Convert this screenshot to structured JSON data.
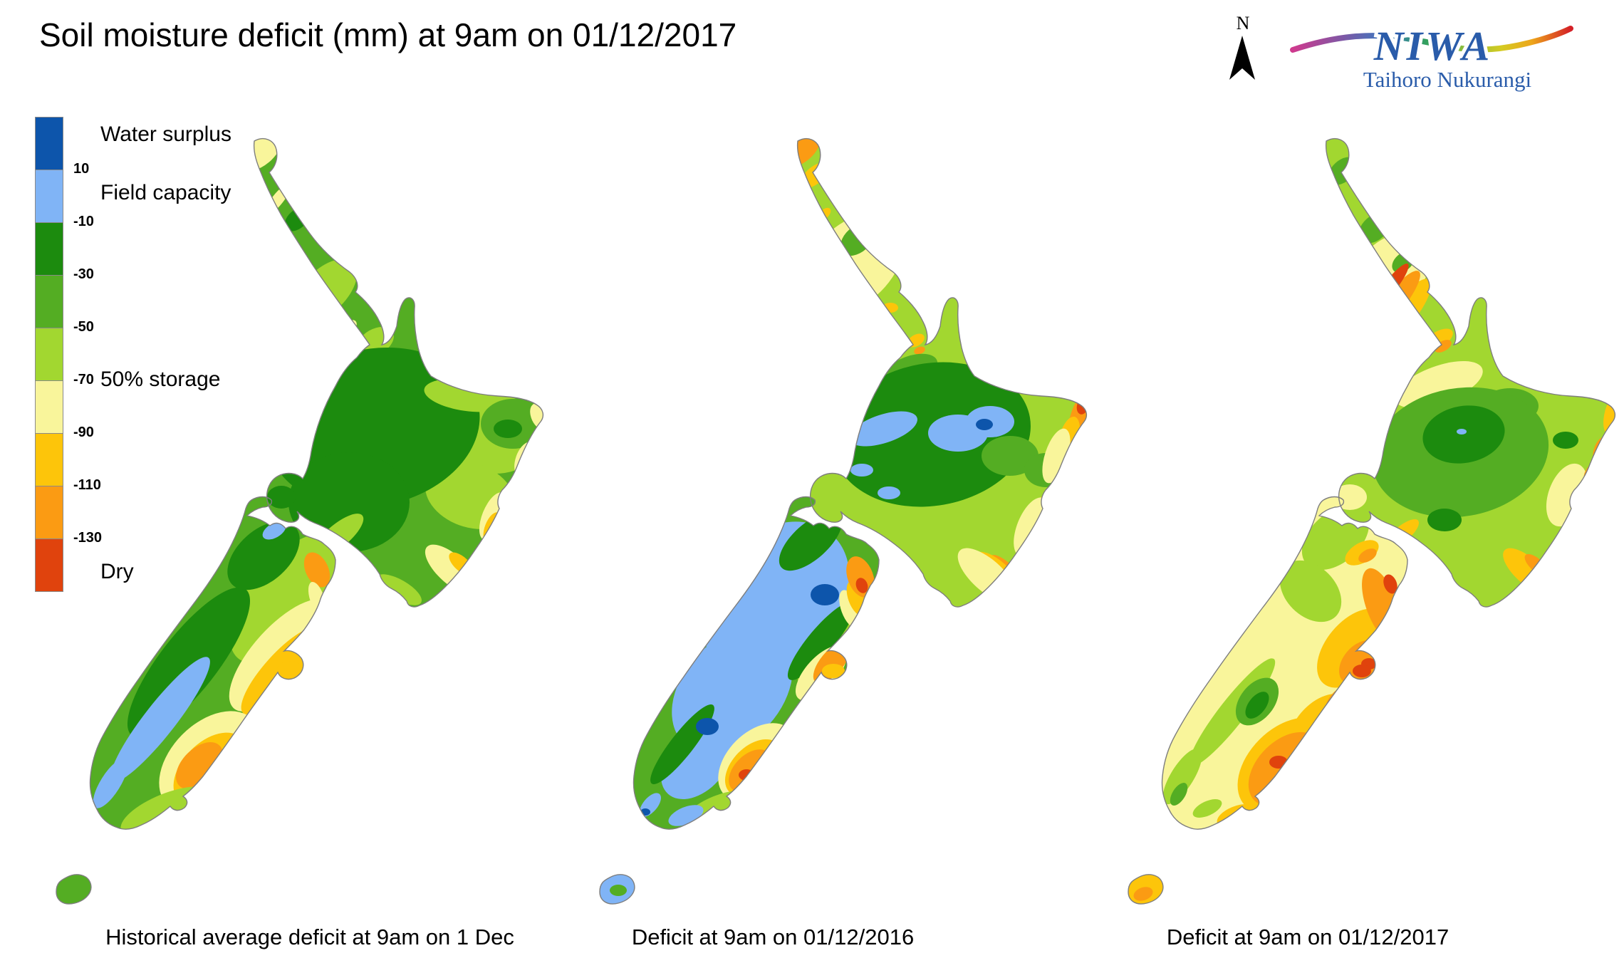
{
  "title": "Soil moisture deficit (mm) at  9am on 01/12/2017",
  "north_arrow": {
    "label": "N"
  },
  "logo": {
    "name": "NIWA",
    "tagline": "Taihoro Nukurangi",
    "color": "#2a5caa"
  },
  "coast_color": "#7e7e7e",
  "legend": {
    "colors": {
      "surplus": "#0d55ab",
      "field": "#80b4f6",
      "g1": "#1c8b0e",
      "g2": "#54ad23",
      "g3": "#a2d730",
      "y1": "#f9f59b",
      "y2": "#fdc50a",
      "o1": "#fb9b13",
      "r1": "#e0430d"
    },
    "order": [
      "surplus",
      "field",
      "g1",
      "g2",
      "g3",
      "y1",
      "y2",
      "o1",
      "r1"
    ],
    "ticks": [
      "10",
      "-10",
      "-30",
      "-50",
      "-70",
      "-90",
      "-110",
      "-130"
    ],
    "annotations": [
      "Water surplus",
      "Field capacity",
      "50% storage",
      "Dry"
    ]
  },
  "maps": [
    {
      "caption": "Historical average deficit at  9am on 1 Dec",
      "base": {
        "ni": "g2",
        "si": "g2",
        "st": "g2"
      },
      "blobs": [
        [
          "ni",
          "y1",
          271,
          74,
          34,
          18,
          -40
        ],
        [
          "ni",
          "y1",
          295,
          140,
          26,
          8,
          -52
        ],
        [
          "ni",
          "g1",
          322,
          168,
          20,
          13,
          -42
        ],
        [
          "ni",
          "g1",
          303,
          220,
          24,
          15,
          -45
        ],
        [
          "ni",
          "g3",
          362,
          268,
          55,
          30,
          -45
        ],
        [
          "ni",
          "y1",
          352,
          288,
          14,
          9,
          -45
        ],
        [
          "ni",
          "y1",
          395,
          320,
          13,
          8,
          -45
        ],
        [
          "ni",
          "g3",
          432,
          340,
          28,
          18,
          -30
        ],
        [
          "ni",
          "g3",
          600,
          470,
          70,
          55,
          0
        ],
        [
          "ni",
          "g3",
          565,
          555,
          65,
          45,
          20
        ],
        [
          "ni",
          "g1",
          430,
          460,
          150,
          110,
          -12
        ],
        [
          "ni",
          "g1",
          395,
          565,
          85,
          70,
          0
        ],
        [
          "ni",
          "g3",
          560,
          415,
          60,
          22,
          8
        ],
        [
          "ni",
          "g2",
          625,
          455,
          45,
          35,
          0
        ],
        [
          "ni",
          "g1",
          618,
          462,
          20,
          13,
          0
        ],
        [
          "ni",
          "y1",
          663,
          445,
          20,
          12,
          65
        ],
        [
          "ni",
          "y1",
          643,
          505,
          14,
          26,
          20
        ],
        [
          "ni",
          "y2",
          650,
          498,
          9,
          14,
          20
        ],
        [
          "ni",
          "y1",
          598,
          585,
          16,
          36,
          22
        ],
        [
          "ni",
          "y2",
          596,
          600,
          10,
          22,
          22
        ],
        [
          "ni",
          "y1",
          540,
          660,
          48,
          20,
          42
        ],
        [
          "ni",
          "y2",
          553,
          652,
          22,
          10,
          42
        ],
        [
          "ni",
          "g1",
          300,
          558,
          20,
          16,
          0
        ],
        [
          "ni",
          "g3",
          380,
          612,
          44,
          16,
          -40
        ],
        [
          "ni",
          "g3",
          465,
          688,
          36,
          14,
          30
        ],
        [
          "si",
          "g3",
          310,
          700,
          110,
          55,
          -50
        ],
        [
          "si",
          "y1",
          300,
          780,
          100,
          40,
          -48
        ],
        [
          "si",
          "y2",
          300,
          802,
          80,
          24,
          -48
        ],
        [
          "si",
          "y1",
          200,
          930,
          85,
          55,
          -45
        ],
        [
          "si",
          "y2",
          200,
          940,
          62,
          38,
          -45
        ],
        [
          "si",
          "o1",
          185,
          935,
          40,
          24,
          -45
        ],
        [
          "si",
          "o1",
          225,
          965,
          18,
          12,
          -45
        ],
        [
          "si",
          "g3",
          140,
          1000,
          70,
          26,
          -22
        ],
        [
          "si",
          "y1",
          185,
          1000,
          28,
          14,
          -25
        ],
        [
          "si",
          "g1",
          170,
          790,
          130,
          40,
          -52
        ],
        [
          "si",
          "g1",
          275,
          640,
          60,
          36,
          -42
        ],
        [
          "si",
          "field",
          130,
          870,
          110,
          22,
          -52
        ],
        [
          "si",
          "field",
          60,
          960,
          40,
          14,
          -58
        ],
        [
          "si",
          "field",
          290,
          605,
          18,
          10,
          -30
        ],
        [
          "si",
          "o1",
          350,
          660,
          16,
          26,
          -25
        ],
        [
          "si",
          "y1",
          350,
          700,
          10,
          24,
          -18
        ],
        [
          "si",
          "y2",
          312,
          800,
          18,
          12,
          0
        ]
      ]
    },
    {
      "caption": "Deficit at  9am on 01/12/2016",
      "base": {
        "ni": "g3",
        "si": "g2",
        "st": "field"
      },
      "blobs": [
        [
          "ni",
          "o1",
          268,
          72,
          30,
          15,
          -40
        ],
        [
          "ni",
          "y2",
          286,
          106,
          24,
          12,
          -40
        ],
        [
          "ni",
          "y1",
          340,
          230,
          85,
          55,
          -45
        ],
        [
          "ni",
          "g2",
          346,
          196,
          28,
          18,
          -42
        ],
        [
          "ni",
          "g2",
          332,
          252,
          20,
          13,
          -42
        ],
        [
          "ni",
          "g1",
          338,
          250,
          9,
          6,
          0
        ],
        [
          "ni",
          "y2",
          300,
          160,
          10,
          6,
          -45
        ],
        [
          "ni",
          "y2",
          392,
          292,
          11,
          7,
          0
        ],
        [
          "ni",
          "y2",
          428,
          338,
          13,
          8,
          -30
        ],
        [
          "ni",
          "o1",
          433,
          352,
          8,
          5,
          -20
        ],
        [
          "ni",
          "g2",
          420,
          380,
          40,
          20,
          -20
        ],
        [
          "ni",
          "g1",
          450,
          470,
          140,
          100,
          -10
        ],
        [
          "ni",
          "field",
          487,
          468,
          42,
          26,
          0
        ],
        [
          "ni",
          "field",
          532,
          452,
          34,
          22,
          0
        ],
        [
          "ni",
          "surplus",
          524,
          456,
          12,
          8,
          0
        ],
        [
          "ni",
          "field",
          382,
          462,
          50,
          20,
          -18
        ],
        [
          "ni",
          "field",
          352,
          520,
          16,
          9,
          0
        ],
        [
          "ni",
          "field",
          390,
          552,
          16,
          9,
          0
        ],
        [
          "ni",
          "g2",
          560,
          500,
          40,
          28,
          0
        ],
        [
          "ni",
          "g2",
          610,
          520,
          30,
          24,
          0
        ],
        [
          "ni",
          "o1",
          658,
          448,
          14,
          36,
          15
        ],
        [
          "ni",
          "r1",
          662,
          430,
          8,
          12,
          15
        ],
        [
          "ni",
          "y2",
          642,
          478,
          14,
          34,
          15
        ],
        [
          "ni",
          "y1",
          625,
          500,
          16,
          40,
          18
        ],
        [
          "ni",
          "o1",
          607,
          578,
          11,
          26,
          20
        ],
        [
          "ni",
          "y2",
          600,
          590,
          16,
          36,
          20
        ],
        [
          "ni",
          "y1",
          590,
          600,
          20,
          44,
          22
        ],
        [
          "ni",
          "o1",
          552,
          658,
          26,
          10,
          42
        ],
        [
          "ni",
          "y2",
          542,
          664,
          40,
          16,
          42
        ],
        [
          "ni",
          "y1",
          528,
          668,
          52,
          22,
          42
        ],
        [
          "si",
          "field",
          230,
          700,
          120,
          90,
          -48
        ],
        [
          "si",
          "field",
          170,
          830,
          100,
          70,
          -48
        ],
        [
          "si",
          "field",
          120,
          930,
          60,
          40,
          -48
        ],
        [
          "si",
          "g1",
          280,
          620,
          55,
          25,
          -42
        ],
        [
          "si",
          "g1",
          100,
          905,
          70,
          16,
          -52
        ],
        [
          "si",
          "g3",
          310,
          770,
          70,
          22,
          -50
        ],
        [
          "si",
          "g1",
          295,
          760,
          70,
          18,
          -50
        ],
        [
          "si",
          "surplus",
          300,
          695,
          20,
          15,
          0
        ],
        [
          "si",
          "surplus",
          135,
          880,
          16,
          12,
          0
        ],
        [
          "si",
          "y1",
          335,
          715,
          12,
          28,
          -20
        ],
        [
          "si",
          "y2",
          345,
          700,
          12,
          26,
          -20
        ],
        [
          "si",
          "o1",
          350,
          670,
          18,
          30,
          -20
        ],
        [
          "si",
          "r1",
          352,
          682,
          8,
          11,
          -20
        ],
        [
          "si",
          "y1",
          295,
          805,
          48,
          22,
          -48
        ],
        [
          "si",
          "o1",
          310,
          790,
          36,
          16,
          -50
        ],
        [
          "si",
          "o1",
          290,
          835,
          28,
          14,
          -46
        ],
        [
          "si",
          "y2",
          312,
          802,
          16,
          10,
          0
        ],
        [
          "si",
          "y1",
          205,
          930,
          65,
          42,
          -45
        ],
        [
          "si",
          "y2",
          200,
          938,
          48,
          30,
          -45
        ],
        [
          "si",
          "o1",
          195,
          942,
          36,
          22,
          -45
        ],
        [
          "si",
          "r1",
          190,
          948,
          11,
          8,
          0
        ],
        [
          "si",
          "g3",
          150,
          995,
          50,
          18,
          -22
        ],
        [
          "si",
          "field",
          105,
          1005,
          26,
          12,
          -22
        ],
        [
          "si",
          "field",
          55,
          990,
          20,
          10,
          -50
        ],
        [
          "si",
          "surplus",
          48,
          1000,
          7,
          5,
          0
        ],
        [
          "si",
          "g1",
          180,
          980,
          14,
          8,
          -30
        ],
        [
          "st",
          "g2",
          10,
          1110,
          12,
          8,
          0
        ]
      ]
    },
    {
      "caption": "Deficit at  9am on 01/12/2017",
      "base": {
        "ni": "g3",
        "si": "y1",
        "st": "y2"
      },
      "blobs": [
        [
          "ni",
          "g2",
          285,
          100,
          24,
          15,
          -42
        ],
        [
          "ni",
          "g2",
          330,
          180,
          26,
          17,
          -42
        ],
        [
          "ni",
          "y1",
          350,
          245,
          70,
          45,
          -45
        ],
        [
          "ni",
          "g2",
          370,
          228,
          18,
          12,
          -42
        ],
        [
          "ni",
          "y2",
          370,
          300,
          60,
          18,
          -52
        ],
        [
          "ni",
          "o1",
          360,
          282,
          52,
          14,
          -52
        ],
        [
          "ni",
          "r1",
          352,
          262,
          40,
          9,
          -52
        ],
        [
          "ni",
          "y2",
          420,
          336,
          22,
          11,
          -30
        ],
        [
          "ni",
          "o1",
          426,
          346,
          13,
          7,
          -30
        ],
        [
          "ni",
          "y1",
          420,
          400,
          65,
          26,
          -20
        ],
        [
          "ni",
          "g2",
          520,
          430,
          40,
          25,
          0
        ],
        [
          "ni",
          "g2",
          450,
          495,
          125,
          90,
          -10
        ],
        [
          "ni",
          "g1",
          455,
          470,
          58,
          40,
          -10
        ],
        [
          "ni",
          "field",
          452,
          466,
          7,
          4,
          0
        ],
        [
          "ni",
          "g1",
          428,
          590,
          24,
          16,
          0
        ],
        [
          "ni",
          "g1",
          598,
          478,
          18,
          12,
          0
        ],
        [
          "ni",
          "y1",
          600,
          555,
          26,
          46,
          20
        ],
        [
          "ni",
          "y2",
          665,
          440,
          12,
          30,
          15
        ],
        [
          "ni",
          "o1",
          652,
          495,
          15,
          24,
          15
        ],
        [
          "ni",
          "o1",
          636,
          528,
          12,
          18,
          18
        ],
        [
          "ni",
          "y2",
          545,
          662,
          44,
          18,
          42
        ],
        [
          "ni",
          "o1",
          558,
          654,
          22,
          9,
          42
        ],
        [
          "ni",
          "y1",
          295,
          558,
          24,
          18,
          0
        ],
        [
          "ni",
          "y2",
          368,
          610,
          30,
          11,
          -40
        ],
        [
          "ni",
          "y2",
          408,
          680,
          20,
          9,
          30
        ],
        [
          "si",
          "g3",
          275,
          615,
          55,
          35,
          -42
        ],
        [
          "si",
          "g3",
          240,
          690,
          35,
          50,
          -45
        ],
        [
          "si",
          "g3",
          130,
          860,
          95,
          18,
          -52
        ],
        [
          "si",
          "g2",
          165,
          845,
          38,
          24,
          -52
        ],
        [
          "si",
          "g1",
          165,
          850,
          22,
          12,
          -52
        ],
        [
          "si",
          "g3",
          60,
          950,
          45,
          16,
          -58
        ],
        [
          "si",
          "g2",
          55,
          975,
          18,
          9,
          -58
        ],
        [
          "si",
          "y2",
          300,
          770,
          65,
          38,
          -50
        ],
        [
          "si",
          "y2",
          255,
          880,
          55,
          34,
          -46
        ],
        [
          "si",
          "o1",
          340,
          710,
          22,
          55,
          -20
        ],
        [
          "si",
          "o1",
          310,
          790,
          36,
          24,
          -48
        ],
        [
          "si",
          "o1",
          285,
          845,
          30,
          18,
          -45
        ],
        [
          "si",
          "r1",
          352,
          680,
          9,
          14,
          -20
        ],
        [
          "si",
          "r1",
          322,
          792,
          11,
          8,
          0
        ],
        [
          "si",
          "r1",
          312,
          802,
          13,
          9,
          0
        ],
        [
          "si",
          "r1",
          295,
          850,
          8,
          6,
          0
        ],
        [
          "si",
          "y2",
          205,
          935,
          80,
          52,
          -45
        ],
        [
          "si",
          "o1",
          205,
          940,
          62,
          40,
          -45
        ],
        [
          "si",
          "r1",
          195,
          930,
          13,
          9,
          0
        ],
        [
          "si",
          "r1",
          235,
          955,
          10,
          7,
          0
        ],
        [
          "si",
          "y2",
          135,
          1005,
          28,
          13,
          -22
        ],
        [
          "si",
          "g3",
          95,
          995,
          22,
          10,
          -25
        ],
        [
          "si",
          "y2",
          312,
          636,
          26,
          14,
          -30
        ],
        [
          "si",
          "o1",
          320,
          640,
          14,
          8,
          -30
        ],
        [
          "st",
          "o1",
          5,
          1115,
          14,
          9,
          -20
        ]
      ]
    }
  ]
}
